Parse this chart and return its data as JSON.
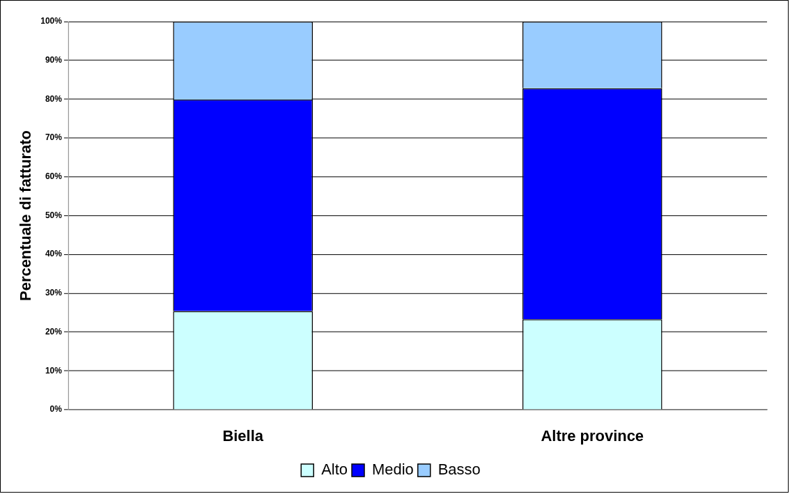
{
  "chart_data": {
    "type": "bar",
    "stacked": true,
    "ylabel": "Percentuale di fatturato",
    "categories": [
      "Biella",
      "Altre province"
    ],
    "series": [
      {
        "name": "Alto",
        "color": "#ccffff",
        "values": [
          25.4,
          23.3
        ]
      },
      {
        "name": "Medio",
        "color": "#0000ff",
        "values": [
          54.5,
          59.5
        ]
      },
      {
        "name": "Basso",
        "color": "#99ccff",
        "values": [
          20.1,
          17.2
        ]
      }
    ],
    "ylim": [
      0,
      100
    ],
    "yticks": [
      {
        "value": 0,
        "label": "0%"
      },
      {
        "value": 10,
        "label": "10%"
      },
      {
        "value": 20,
        "label": "20%"
      },
      {
        "value": 30,
        "label": "30%"
      },
      {
        "value": 40,
        "label": "40%"
      },
      {
        "value": 50,
        "label": "50%"
      },
      {
        "value": 60,
        "label": "60%"
      },
      {
        "value": 70,
        "label": "70%"
      },
      {
        "value": 80,
        "label": "80%"
      },
      {
        "value": 90,
        "label": "90%"
      },
      {
        "value": 100,
        "label": "100%"
      }
    ],
    "grid": "y",
    "legend": "bottom"
  }
}
